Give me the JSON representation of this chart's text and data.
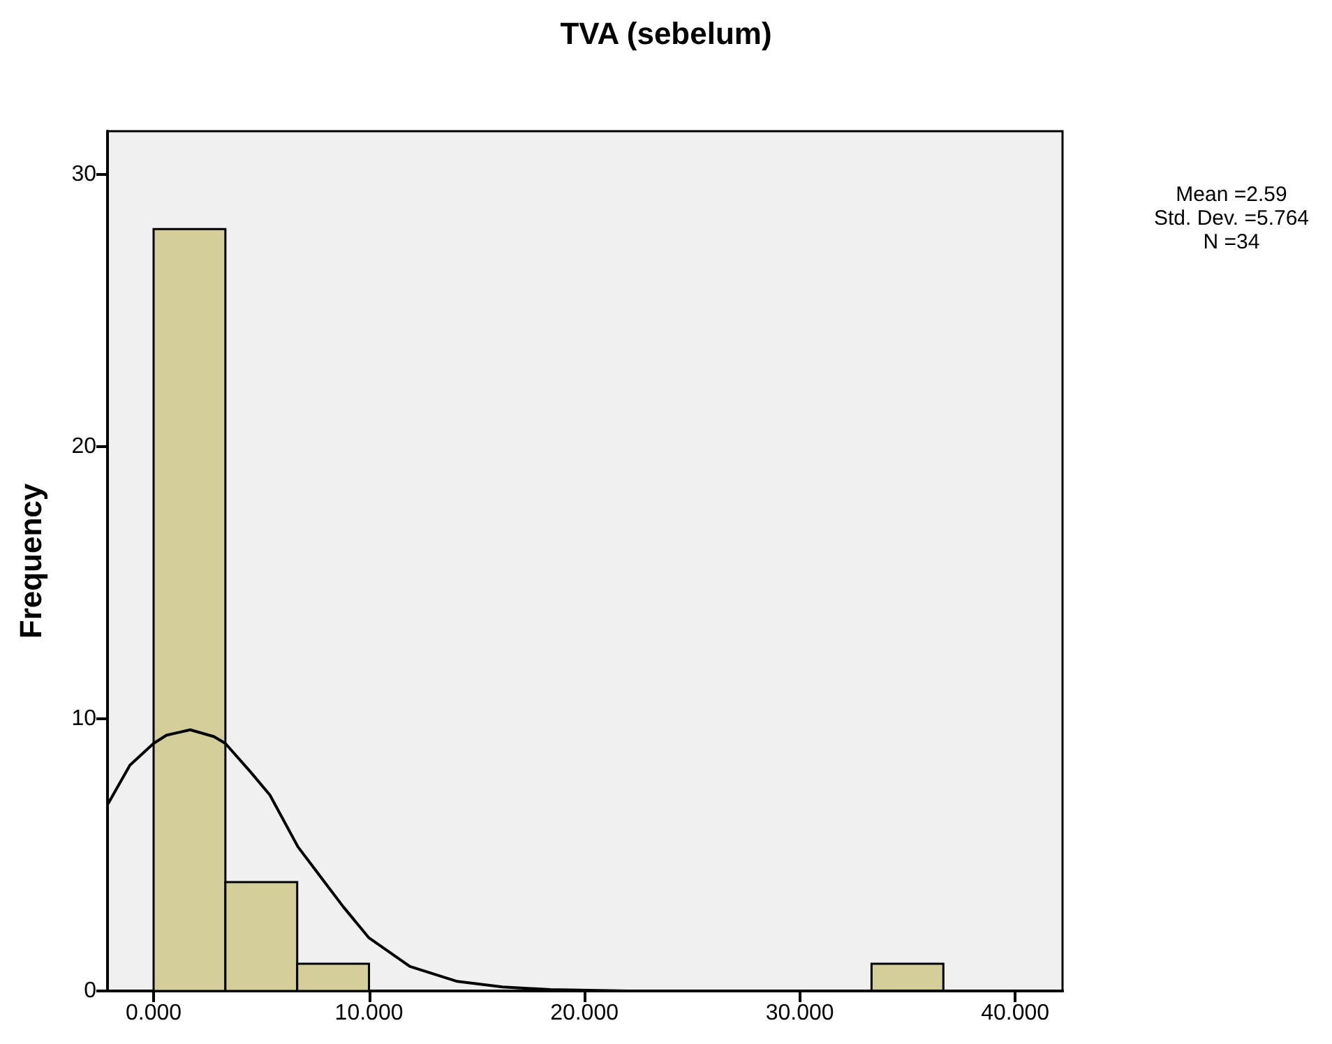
{
  "chart_data": {
    "type": "histogram",
    "title": "TVA (sebelum)",
    "ylabel": "Frequency",
    "xlim": [
      -2.14,
      42.2
    ],
    "ylim": [
      0,
      31.6
    ],
    "xticks": [
      {
        "value": 0,
        "label": "0.000"
      },
      {
        "value": 10,
        "label": "10.000"
      },
      {
        "value": 20,
        "label": "20.000"
      },
      {
        "value": 30,
        "label": "30.000"
      },
      {
        "value": 40,
        "label": "40.000"
      }
    ],
    "yticks": [
      0,
      10,
      20,
      30
    ],
    "grid": false,
    "annotations": [
      "Mean =2.59",
      "Std. Dev. =5.764",
      "N =34"
    ],
    "series": [
      {
        "color": "#d3ce9a",
        "bins": [
          0,
          3.333,
          6.667,
          10,
          13.333,
          16.667,
          20,
          23.333,
          26.667,
          30,
          33.333,
          36.667
        ],
        "values": [
          28,
          4,
          1,
          0,
          0,
          0,
          0,
          0,
          0,
          0,
          1
        ]
      },
      {
        "type": "line",
        "color": "#000000",
        "marker": "none",
        "line_style": "solid",
        "x": [
          -2.1,
          -1.1,
          0,
          0.6,
          1.7,
          2.8,
          3.33,
          4.5,
          5.4,
          6.7,
          7.7,
          8.8,
          10,
          11.9,
          14.1,
          16.2,
          18.4,
          22,
          30,
          42.2
        ],
        "values": [
          6.9,
          8.3,
          9.1,
          9.4,
          9.6,
          9.35,
          9.1,
          8.05,
          7.2,
          5.3,
          4.25,
          3.1,
          1.95,
          0.9,
          0.35,
          0.15,
          0.05,
          0,
          0,
          0
        ]
      }
    ]
  }
}
